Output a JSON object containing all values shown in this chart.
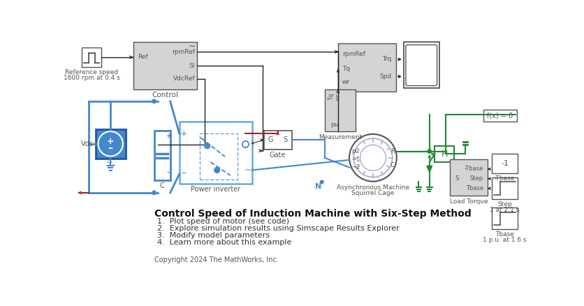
{
  "title": "Control Speed of Induction Machine with Six-Step Method",
  "bullet_points": [
    "1.  Plot speed of motor (see code)",
    "2.  Explore simulation results using Simscape Results Explorer",
    "3.  Modify model parameters",
    "4.  Learn more about this example"
  ],
  "copyright": "Copyright 2024 The MathWorks, Inc.",
  "bg_color": "#ffffff",
  "gray_block": "#d4d4d4",
  "blue_dark": "#2255aa",
  "blue_mid": "#4488cc",
  "blue_light": "#66aadd",
  "blue_vdc": "#4488cc",
  "green": "#228833",
  "red_line": "#aa2222",
  "black": "#222222",
  "mid_gray": "#888888",
  "dark_gray": "#555555"
}
